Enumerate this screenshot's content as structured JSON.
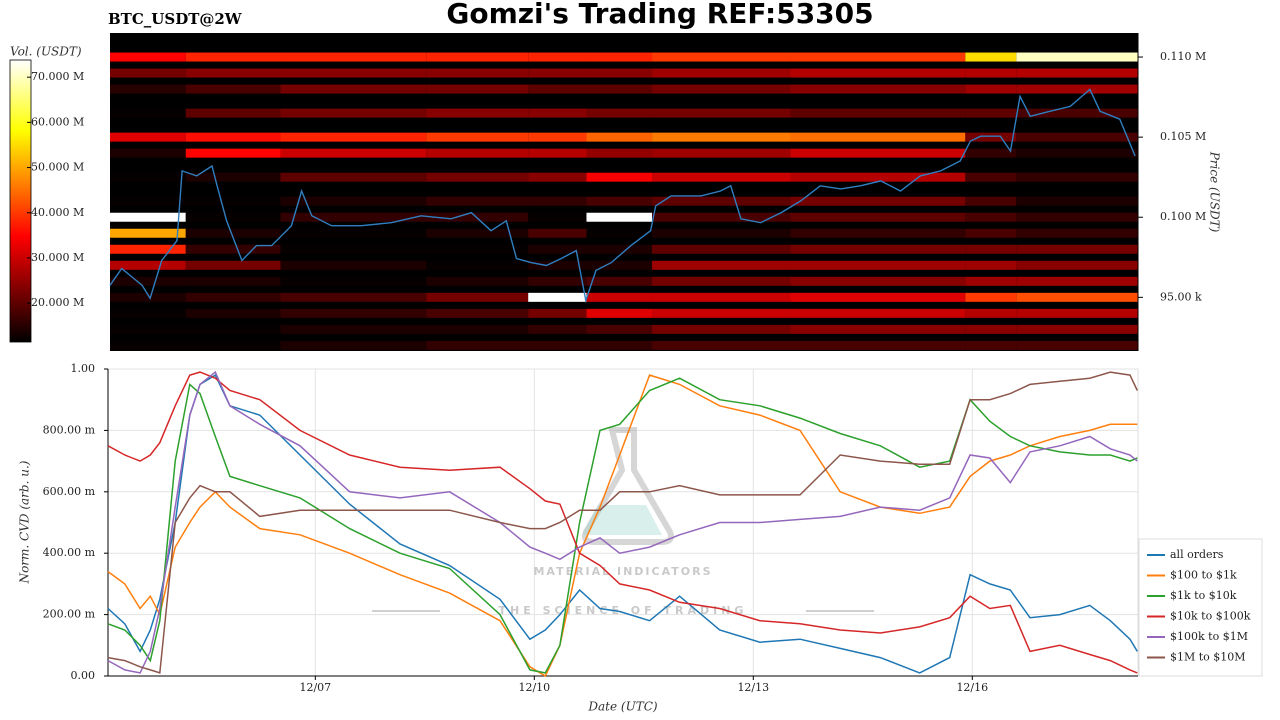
{
  "watermark": {
    "title": "MATERIAL INDICATORS",
    "subtitle": "THE SCIENCE OF TRADING"
  },
  "chart_data": [
    {
      "type": "heatmap",
      "title": "Gomzi's Trading REF:53305",
      "subtitle": "BTC_USDT@2W",
      "colorbar_label": "Vol. (USDT)",
      "y_label": "Price (USDT)",
      "colormap": "hot",
      "clim": [
        11400000,
        73800000
      ],
      "cticks": [
        {
          "value": 20000000,
          "label": "20.000 M"
        },
        {
          "value": 30000000,
          "label": "30.000 M"
        },
        {
          "value": 40000000,
          "label": "40.000 M"
        },
        {
          "value": 50000000,
          "label": "50.000 M"
        },
        {
          "value": 60000000,
          "label": "60.000 M"
        },
        {
          "value": 70000000,
          "label": "70.000 M"
        }
      ],
      "xlim": [
        4.16,
        18.27
      ],
      "ylim": [
        91650,
        111500
      ],
      "yticks": [
        {
          "value": 95000,
          "label": "95.00 k"
        },
        {
          "value": 100000,
          "label": "0.100 M"
        },
        {
          "value": 105000,
          "label": "0.105 M"
        },
        {
          "value": 110000,
          "label": "0.110 M"
        }
      ],
      "heatmap": {
        "x": [
          4.16,
          5.2,
          6.5,
          8.5,
          9.9,
          10.7,
          11.6,
          13.5,
          15.9,
          16.6,
          18.27
        ],
        "y": [
          110000,
          109000,
          108000,
          106500,
          105000,
          104000,
          102500,
          101000,
          100000,
          99000,
          98000,
          97000,
          96000,
          95000,
          94000,
          93000,
          92000
        ],
        "z": [
          [
            35000000,
            38000000,
            38000000,
            38000000,
            38000000,
            38000000,
            40000000,
            40000000,
            55000000,
            70000000
          ],
          [
            22000000,
            24000000,
            24000000,
            24000000,
            24000000,
            24000000,
            26000000,
            28000000,
            28000000,
            28000000
          ],
          [
            15000000,
            18000000,
            22000000,
            22000000,
            20000000,
            20000000,
            22000000,
            24000000,
            26000000,
            26000000
          ],
          [
            12000000,
            20000000,
            22000000,
            24000000,
            24000000,
            22000000,
            22000000,
            20000000,
            20000000,
            18000000
          ],
          [
            32000000,
            36000000,
            38000000,
            40000000,
            40000000,
            44000000,
            46000000,
            45000000,
            22000000,
            18000000
          ],
          [
            14000000,
            35000000,
            30000000,
            28000000,
            28000000,
            25000000,
            26000000,
            30000000,
            16000000,
            14000000
          ],
          [
            12000000,
            14000000,
            20000000,
            22000000,
            24000000,
            34000000,
            30000000,
            28000000,
            18000000,
            16000000
          ],
          [
            12000000,
            12000000,
            14000000,
            16000000,
            16000000,
            18000000,
            20000000,
            22000000,
            18000000,
            14000000
          ],
          [
            74000000,
            12000000,
            16000000,
            16000000,
            12000000,
            74000000,
            18000000,
            20000000,
            18000000,
            16000000
          ],
          [
            50000000,
            14000000,
            12000000,
            14000000,
            18000000,
            12000000,
            14000000,
            16000000,
            18000000,
            16000000
          ],
          [
            38000000,
            16000000,
            12000000,
            12000000,
            14000000,
            14000000,
            20000000,
            22000000,
            22000000,
            22000000
          ],
          [
            28000000,
            22000000,
            14000000,
            12000000,
            14000000,
            14000000,
            26000000,
            26000000,
            26000000,
            24000000
          ],
          [
            14000000,
            14000000,
            12000000,
            14000000,
            16000000,
            18000000,
            22000000,
            24000000,
            26000000,
            26000000
          ],
          [
            14000000,
            16000000,
            18000000,
            22000000,
            74000000,
            30000000,
            30000000,
            32000000,
            40000000,
            42000000
          ],
          [
            12000000,
            14000000,
            16000000,
            18000000,
            22000000,
            32000000,
            30000000,
            30000000,
            28000000,
            28000000
          ],
          [
            12000000,
            12000000,
            14000000,
            14000000,
            16000000,
            18000000,
            22000000,
            24000000,
            24000000,
            24000000
          ],
          [
            12000000,
            12000000,
            14000000,
            16000000,
            16000000,
            16000000,
            18000000,
            18000000,
            18000000,
            18000000
          ]
        ]
      },
      "line": {
        "color": "#2f7fc1",
        "x": [
          4.16,
          4.32,
          4.6,
          4.71,
          4.87,
          5.08,
          5.15,
          5.35,
          5.56,
          5.63,
          5.76,
          5.97,
          6.17,
          6.38,
          6.65,
          6.79,
          6.93,
          7.2,
          7.61,
          8.02,
          8.43,
          8.84,
          9.12,
          9.39,
          9.6,
          9.74,
          9.94,
          10.15,
          10.35,
          10.56,
          10.69,
          10.83,
          11.04,
          11.31,
          11.58,
          11.65,
          11.86,
          12.27,
          12.54,
          12.68,
          12.82,
          13.09,
          13.37,
          13.64,
          13.91,
          14.19,
          14.46,
          14.74,
          15.01,
          15.28,
          15.56,
          15.83,
          15.97,
          16.11,
          16.38,
          16.52,
          16.65,
          16.79,
          17.06,
          17.34,
          17.61,
          17.75,
          18.02,
          18.23
        ],
        "values": [
          95750,
          96800,
          95750,
          94940,
          97300,
          98540,
          102890,
          102580,
          103200,
          101960,
          99780,
          97300,
          98230,
          98230,
          99470,
          101640,
          100090,
          99470,
          99470,
          99660,
          100090,
          99900,
          100280,
          99160,
          99780,
          97420,
          97170,
          96990,
          97420,
          97920,
          94810,
          96680,
          97170,
          98230,
          99160,
          100710,
          101330,
          101330,
          101640,
          101960,
          99900,
          99660,
          100280,
          101020,
          101960,
          101770,
          101960,
          102270,
          101640,
          102580,
          102890,
          103510,
          104750,
          105060,
          105060,
          104130,
          107540,
          106300,
          106610,
          106920,
          107980,
          106610,
          106120,
          103820
        ]
      }
    },
    {
      "type": "line",
      "x_label": "Date (UTC)",
      "y_label": "Norm. CVD (arb. u.)",
      "xlim": [
        4.16,
        18.27
      ],
      "xticks": [
        {
          "value": 7,
          "label": "12/07"
        },
        {
          "value": 10,
          "label": "12/10"
        },
        {
          "value": 13,
          "label": "12/13"
        },
        {
          "value": 16,
          "label": "12/16"
        }
      ],
      "ylim": [
        0,
        1
      ],
      "yticks": [
        {
          "value": 0,
          "label": "0.00"
        },
        {
          "value": 0.2,
          "label": "200.00 m"
        },
        {
          "value": 0.4,
          "label": "400.00 m"
        },
        {
          "value": 0.6,
          "label": "600.00 m"
        },
        {
          "value": 0.8,
          "label": "800.00 m"
        },
        {
          "value": 1,
          "label": "1.00"
        }
      ],
      "grid": true,
      "legend": "lower right",
      "x": [
        4.16,
        4.39,
        4.6,
        4.74,
        4.87,
        5.08,
        5.28,
        5.42,
        5.63,
        5.83,
        6.24,
        6.79,
        7.47,
        8.16,
        8.84,
        9.53,
        9.94,
        10.15,
        10.35,
        10.62,
        10.9,
        11.17,
        11.58,
        11.99,
        12.54,
        13.09,
        13.64,
        14.19,
        14.74,
        15.28,
        15.69,
        15.97,
        16.24,
        16.52,
        16.79,
        17.2,
        17.61,
        17.89,
        18.16,
        18.26
      ],
      "series": [
        {
          "name": "all orders",
          "color": "#1f77b4",
          "values": [
            0.22,
            0.17,
            0.08,
            0.15,
            0.25,
            0.5,
            0.85,
            0.95,
            0.98,
            0.88,
            0.85,
            0.72,
            0.56,
            0.43,
            0.36,
            0.25,
            0.12,
            0.15,
            0.2,
            0.28,
            0.22,
            0.21,
            0.18,
            0.26,
            0.15,
            0.11,
            0.12,
            0.09,
            0.06,
            0.01,
            0.06,
            0.33,
            0.3,
            0.28,
            0.19,
            0.2,
            0.23,
            0.18,
            0.12,
            0.08
          ]
        },
        {
          "name": "$100 to $1k",
          "color": "#ff7f0e",
          "values": [
            0.34,
            0.3,
            0.22,
            0.26,
            0.2,
            0.42,
            0.5,
            0.55,
            0.6,
            0.55,
            0.48,
            0.46,
            0.4,
            0.33,
            0.27,
            0.18,
            0.03,
            0,
            0.1,
            0.4,
            0.55,
            0.72,
            0.98,
            0.95,
            0.88,
            0.85,
            0.8,
            0.6,
            0.55,
            0.53,
            0.55,
            0.65,
            0.7,
            0.72,
            0.75,
            0.78,
            0.8,
            0.82,
            0.82,
            0.82
          ]
        },
        {
          "name": "$1k to $10k",
          "color": "#2ca02c",
          "values": [
            0.17,
            0.15,
            0.1,
            0.05,
            0.18,
            0.7,
            0.95,
            0.92,
            0.78,
            0.65,
            0.62,
            0.58,
            0.48,
            0.4,
            0.35,
            0.2,
            0.02,
            0.01,
            0.1,
            0.5,
            0.8,
            0.82,
            0.93,
            0.97,
            0.9,
            0.88,
            0.84,
            0.79,
            0.75,
            0.68,
            0.7,
            0.9,
            0.83,
            0.78,
            0.75,
            0.73,
            0.72,
            0.72,
            0.7,
            0.71
          ]
        },
        {
          "name": "$10k to $100k",
          "color": "#d62728",
          "values": [
            0.75,
            0.72,
            0.7,
            0.72,
            0.76,
            0.88,
            0.98,
            0.99,
            0.97,
            0.93,
            0.9,
            0.8,
            0.72,
            0.68,
            0.67,
            0.68,
            0.61,
            0.57,
            0.56,
            0.4,
            0.36,
            0.3,
            0.28,
            0.24,
            0.22,
            0.18,
            0.17,
            0.15,
            0.14,
            0.16,
            0.19,
            0.26,
            0.22,
            0.23,
            0.08,
            0.1,
            0.07,
            0.05,
            0.02,
            0.01
          ]
        },
        {
          "name": "$100k to $1M",
          "color": "#9467bd",
          "values": [
            0.05,
            0.02,
            0.01,
            0.08,
            0.22,
            0.55,
            0.85,
            0.95,
            0.99,
            0.88,
            0.82,
            0.75,
            0.6,
            0.58,
            0.6,
            0.5,
            0.42,
            0.4,
            0.38,
            0.42,
            0.45,
            0.4,
            0.42,
            0.46,
            0.5,
            0.5,
            0.51,
            0.52,
            0.55,
            0.54,
            0.58,
            0.72,
            0.71,
            0.63,
            0.73,
            0.75,
            0.78,
            0.74,
            0.72,
            0.7
          ]
        },
        {
          "name": "$1M to $10M",
          "color": "#8c564b",
          "values": [
            0.06,
            0.05,
            0.03,
            0.02,
            0.01,
            0.5,
            0.58,
            0.62,
            0.6,
            0.6,
            0.52,
            0.54,
            0.54,
            0.54,
            0.54,
            0.5,
            0.48,
            0.48,
            0.5,
            0.54,
            0.54,
            0.6,
            0.6,
            0.62,
            0.59,
            0.59,
            0.59,
            0.72,
            0.7,
            0.69,
            0.69,
            0.9,
            0.9,
            0.92,
            0.95,
            0.96,
            0.97,
            0.99,
            0.98,
            0.93
          ]
        }
      ]
    }
  ]
}
